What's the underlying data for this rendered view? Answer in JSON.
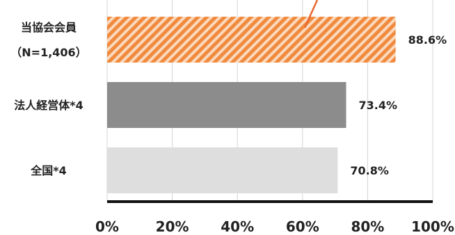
{
  "chart_data": {
    "type": "bar",
    "orientation": "horizontal",
    "categories": [
      {
        "lines": [
          "当協会会員",
          "（N=1,406）"
        ],
        "value": 88.6,
        "value_label": "88.6%",
        "color": "#f08a3e",
        "pattern": "hatch"
      },
      {
        "lines": [
          "法人経営体*4"
        ],
        "value": 73.4,
        "value_label": "73.4%",
        "color": "#8c8c8c",
        "pattern": "solid"
      },
      {
        "lines": [
          "全国*4"
        ],
        "value": 70.8,
        "value_label": "70.8%",
        "color": "#dedede",
        "pattern": "solid"
      }
    ],
    "xlim": [
      0,
      100
    ],
    "xticks": [
      "0%",
      "20%",
      "40%",
      "60%",
      "80%",
      "100%"
    ],
    "grid": "vertical",
    "colors": {
      "grid": "#d4d4d4",
      "axis": "#111111",
      "accent_line": "#e8662e"
    }
  }
}
